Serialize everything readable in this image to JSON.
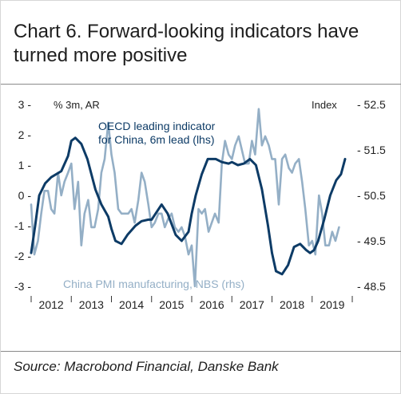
{
  "title": "Chart 6. Forward-looking indicators have turned more positive",
  "source": "Source: Macrobond Financial, Danske Bank",
  "chart_data": {
    "type": "line",
    "left_axis_label": "% 3m, AR",
    "right_axis_label": "Index",
    "left_ticks": [
      3,
      2,
      1,
      0,
      -1,
      -2,
      -3
    ],
    "right_ticks": [
      52.5,
      51.5,
      50.5,
      49.5,
      48.5
    ],
    "left_tick_labels": [
      "3 -",
      "2 -",
      "1 -",
      "0 -",
      "-1 -",
      "-2 -",
      "-3 -"
    ],
    "right_tick_labels": [
      "- 52.5",
      "- 51.5",
      "- 50.5",
      "- 49.5",
      "- 48.5"
    ],
    "left_ylim": [
      -3,
      3
    ],
    "right_ylim": [
      48.5,
      52.5
    ],
    "x_tick_labels": [
      "2012",
      "2013",
      "2014",
      "2015",
      "2016",
      "2017",
      "2018",
      "2019"
    ],
    "xlim": [
      2012.0,
      2020.0
    ],
    "colors": {
      "oecd": "#0d3b66",
      "pmi": "#94afc6"
    },
    "series": [
      {
        "name": "OECD leading indicator for China, 6m lead (lhs)",
        "axis": "left",
        "color": "#0d3b66",
        "x": [
          2012.0,
          2012.1,
          2012.2,
          2012.35,
          2012.5,
          2012.75,
          2012.92,
          2013.0,
          2013.1,
          2013.25,
          2013.4,
          2013.5,
          2013.6,
          2013.75,
          2013.92,
          2014.0,
          2014.1,
          2014.25,
          2014.4,
          2014.6,
          2014.75,
          2014.92,
          2015.0,
          2015.1,
          2015.25,
          2015.4,
          2015.6,
          2015.75,
          2015.92,
          2016.0,
          2016.1,
          2016.25,
          2016.4,
          2016.6,
          2016.75,
          2016.92,
          2017.0,
          2017.15,
          2017.3,
          2017.45,
          2017.6,
          2017.75,
          2017.9,
          2018.0,
          2018.1,
          2018.25,
          2018.4,
          2018.55,
          2018.7,
          2018.85,
          2018.95,
          2019.05,
          2019.15,
          2019.3,
          2019.45,
          2019.6,
          2019.72,
          2019.82
        ],
        "values": [
          -1.9,
          -1.0,
          0.0,
          0.4,
          0.6,
          0.8,
          1.3,
          1.8,
          1.9,
          1.7,
          1.2,
          0.7,
          0.2,
          -0.3,
          -0.7,
          -1.1,
          -1.5,
          -1.6,
          -1.3,
          -1.0,
          -0.85,
          -0.8,
          -0.8,
          -0.6,
          -0.3,
          -0.6,
          -1.3,
          -1.5,
          -1.2,
          -0.6,
          0.0,
          0.7,
          1.2,
          1.2,
          1.1,
          1.05,
          1.1,
          1.0,
          1.05,
          1.2,
          1.0,
          0.2,
          -1.0,
          -1.9,
          -2.5,
          -2.6,
          -2.3,
          -1.7,
          -1.6,
          -1.8,
          -1.9,
          -1.8,
          -1.5,
          -0.8,
          0.0,
          0.5,
          0.7,
          1.2
        ]
      },
      {
        "name": "China PMI manufacturing, NBS (rhs)",
        "axis": "right",
        "color": "#94afc6",
        "x": [
          2012.0,
          2012.08,
          2012.17,
          2012.25,
          2012.33,
          2012.42,
          2012.5,
          2012.58,
          2012.67,
          2012.75,
          2012.83,
          2012.92,
          2013.0,
          2013.08,
          2013.17,
          2013.25,
          2013.33,
          2013.42,
          2013.5,
          2013.58,
          2013.67,
          2013.75,
          2013.83,
          2013.92,
          2014.0,
          2014.08,
          2014.17,
          2014.25,
          2014.33,
          2014.42,
          2014.5,
          2014.58,
          2014.67,
          2014.75,
          2014.83,
          2014.92,
          2015.0,
          2015.08,
          2015.17,
          2015.25,
          2015.33,
          2015.42,
          2015.5,
          2015.58,
          2015.67,
          2015.75,
          2015.83,
          2015.92,
          2016.0,
          2016.08,
          2016.17,
          2016.25,
          2016.33,
          2016.42,
          2016.5,
          2016.58,
          2016.67,
          2016.75,
          2016.83,
          2016.92,
          2017.0,
          2017.08,
          2017.17,
          2017.25,
          2017.33,
          2017.42,
          2017.5,
          2017.58,
          2017.67,
          2017.75,
          2017.83,
          2017.92,
          2018.0,
          2018.08,
          2018.17,
          2018.25,
          2018.33,
          2018.42,
          2018.5,
          2018.58,
          2018.67,
          2018.75,
          2018.83,
          2018.92,
          2019.0,
          2019.08,
          2019.17,
          2019.25,
          2019.33,
          2019.42,
          2019.5,
          2019.58,
          2019.67
        ],
        "values": [
          50.3,
          49.2,
          49.5,
          50.1,
          50.6,
          50.6,
          50.2,
          50.1,
          51.0,
          50.5,
          50.8,
          51.0,
          51.2,
          50.2,
          50.8,
          49.4,
          50.1,
          50.4,
          49.8,
          49.8,
          50.2,
          51.0,
          51.3,
          52.1,
          51.4,
          51.0,
          50.2,
          50.1,
          50.1,
          50.1,
          50.2,
          49.9,
          50.4,
          51.0,
          50.8,
          50.3,
          49.8,
          49.9,
          50.1,
          50.1,
          49.8,
          50.0,
          50.1,
          49.8,
          49.7,
          49.8,
          49.6,
          49.2,
          49.4,
          48.5,
          50.2,
          50.1,
          50.2,
          49.7,
          49.9,
          50.1,
          49.9,
          51.2,
          51.7,
          51.4,
          51.3,
          51.6,
          51.8,
          51.5,
          51.2,
          51.2,
          51.7,
          51.4,
          52.4,
          51.6,
          51.8,
          51.6,
          51.3,
          51.3,
          50.3,
          51.3,
          51.4,
          51.1,
          51.0,
          51.2,
          51.3,
          50.8,
          50.2,
          49.4,
          49.5,
          49.2,
          50.5,
          50.1,
          49.4,
          49.4,
          49.7,
          49.5,
          49.8
        ]
      }
    ],
    "annotations": [
      {
        "text": "OECD leading indicator",
        "series": 0
      },
      {
        "text": "for China, 6m lead (lhs)",
        "series": 0
      },
      {
        "text": "China PMI manufacturing, NBS (rhs)",
        "series": 1
      }
    ],
    "grid": false,
    "legend": "inline labels"
  }
}
